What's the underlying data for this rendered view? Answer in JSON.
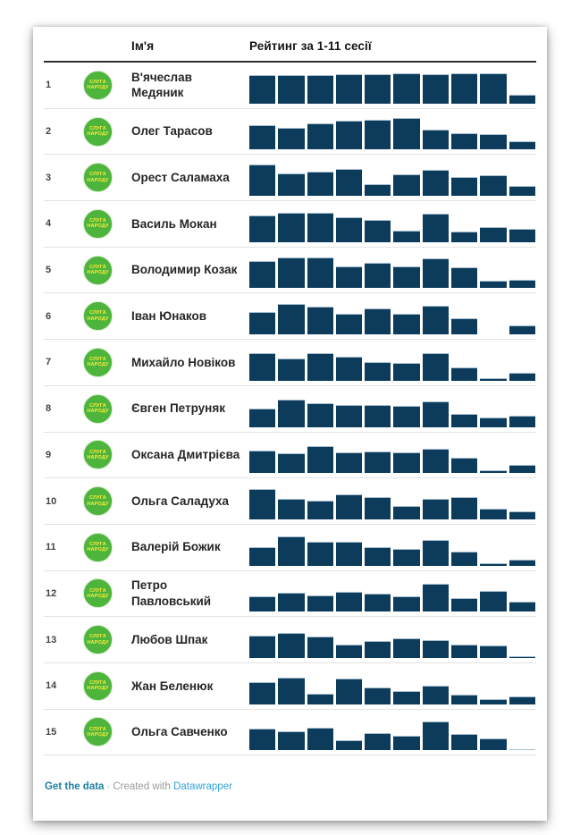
{
  "header": {
    "name_col": "Ім'я",
    "rating_col": "Рейтинг за 1-11 сесії"
  },
  "logo": {
    "line1": "СЛУГА",
    "line2": "НАРОДУ",
    "party": "Слуга народу"
  },
  "colors": {
    "bar": "#0d3b5c",
    "bar_edge": "#a7bfcf",
    "logo_green": "#4db43c",
    "logo_text_yellow": "#f8ee3e",
    "header_rule": "#2e2e2e",
    "row_divider": "#e3e3e3",
    "footer_link": "#1d81a2",
    "footer_brand": "#35a3dc"
  },
  "footer": {
    "get_data_label": "Get the data",
    "separator": "·",
    "created_with": "Created with",
    "brand": "Datawrapper"
  },
  "chart_data": {
    "type": "table",
    "title": "",
    "columns": [
      "",
      "",
      "Ім'я",
      "Рейтинг за 1-11 сесії"
    ],
    "bar_chart_type": "bar",
    "bars_per_row": 10,
    "value_scale": "relative bar heights in px, 0–35 (no axis labels shown)",
    "legend": "none",
    "rows": [
      {
        "rank": "1",
        "name": "В'ячеслав Медяник",
        "bars": [
          32,
          32,
          32,
          33,
          33,
          34,
          33,
          34,
          34,
          10
        ]
      },
      {
        "rank": "2",
        "name": "Олег Тарасов",
        "bars": [
          27,
          24,
          29,
          32,
          33,
          35,
          22,
          18,
          17,
          9
        ]
      },
      {
        "rank": "3",
        "name": "Орест Саламаха",
        "bars": [
          35,
          25,
          27,
          30,
          13,
          24,
          29,
          21,
          23,
          11
        ]
      },
      {
        "rank": "4",
        "name": "Василь Мокан",
        "bars": [
          30,
          33,
          33,
          28,
          25,
          13,
          32,
          12,
          17,
          15
        ]
      },
      {
        "rank": "5",
        "name": "Володимир Козак",
        "bars": [
          30,
          34,
          34,
          24,
          28,
          24,
          33,
          23,
          8,
          9
        ]
      },
      {
        "rank": "6",
        "name": "Іван Юнаков",
        "bars": [
          25,
          34,
          31,
          23,
          29,
          23,
          32,
          18,
          0,
          10
        ]
      },
      {
        "rank": "7",
        "name": "Михайло Новіков",
        "bars": [
          31,
          25,
          31,
          27,
          21,
          20,
          31,
          15,
          3,
          9
        ]
      },
      {
        "rank": "8",
        "name": "Євген Петруняк",
        "bars": [
          21,
          31,
          27,
          25,
          25,
          24,
          29,
          15,
          11,
          13
        ]
      },
      {
        "rank": "9",
        "name": "Оксана Дмитрієва",
        "bars": [
          25,
          22,
          30,
          23,
          24,
          23,
          27,
          17,
          3,
          9
        ]
      },
      {
        "rank": "10",
        "name": "Ольга Саладуха",
        "bars": [
          34,
          23,
          21,
          28,
          25,
          15,
          23,
          25,
          12,
          9
        ]
      },
      {
        "rank": "11",
        "name": "Валерій Божик",
        "bars": [
          21,
          33,
          27,
          27,
          21,
          19,
          29,
          16,
          3,
          7
        ]
      },
      {
        "rank": "12",
        "name": "Петро Павловський",
        "bars": [
          17,
          21,
          18,
          22,
          20,
          17,
          31,
          15,
          23,
          11
        ]
      },
      {
        "rank": "13",
        "name": "Любов Шпак",
        "bars": [
          25,
          28,
          24,
          15,
          19,
          22,
          20,
          15,
          14,
          2
        ]
      },
      {
        "rank": "14",
        "name": "Жан Беленюк",
        "bars": [
          25,
          30,
          12,
          29,
          19,
          15,
          21,
          11,
          6,
          9
        ]
      },
      {
        "rank": "15",
        "name": "Ольга Савченко",
        "bars": [
          24,
          21,
          25,
          11,
          19,
          16,
          32,
          18,
          13,
          1
        ]
      }
    ]
  }
}
